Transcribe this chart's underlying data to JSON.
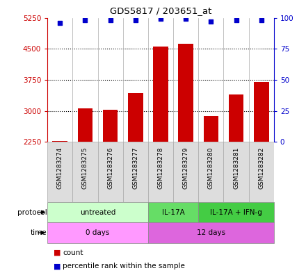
{
  "title": "GDS5817 / 203651_at",
  "samples": [
    "GSM1283274",
    "GSM1283275",
    "GSM1283276",
    "GSM1283277",
    "GSM1283278",
    "GSM1283279",
    "GSM1283280",
    "GSM1283281",
    "GSM1283282"
  ],
  "counts": [
    2270,
    3060,
    3030,
    3430,
    4560,
    4620,
    2870,
    3390,
    3700
  ],
  "percentile_ranks": [
    96,
    98,
    98,
    98,
    99,
    99,
    97,
    98,
    98
  ],
  "ylim_left": [
    2250,
    5250
  ],
  "ylim_right": [
    0,
    100
  ],
  "yticks_left": [
    2250,
    3000,
    3750,
    4500,
    5250
  ],
  "yticks_right": [
    0,
    25,
    50,
    75,
    100
  ],
  "protocol_groups": [
    {
      "label": "untreated",
      "start": 0,
      "end": 4,
      "color": "#ccffcc"
    },
    {
      "label": "IL-17A",
      "start": 4,
      "end": 6,
      "color": "#66dd66"
    },
    {
      "label": "IL-17A + IFN-g",
      "start": 6,
      "end": 9,
      "color": "#44cc44"
    }
  ],
  "time_groups": [
    {
      "label": "0 days",
      "start": 0,
      "end": 4,
      "color": "#ff99ff"
    },
    {
      "label": "12 days",
      "start": 4,
      "end": 9,
      "color": "#dd66dd"
    }
  ],
  "bar_color": "#cc0000",
  "dot_color": "#0000cc",
  "left_axis_color": "#cc0000",
  "right_axis_color": "#0000cc",
  "sample_box_color": "#dddddd",
  "bar_width": 0.6,
  "bar_bottom": 2250
}
